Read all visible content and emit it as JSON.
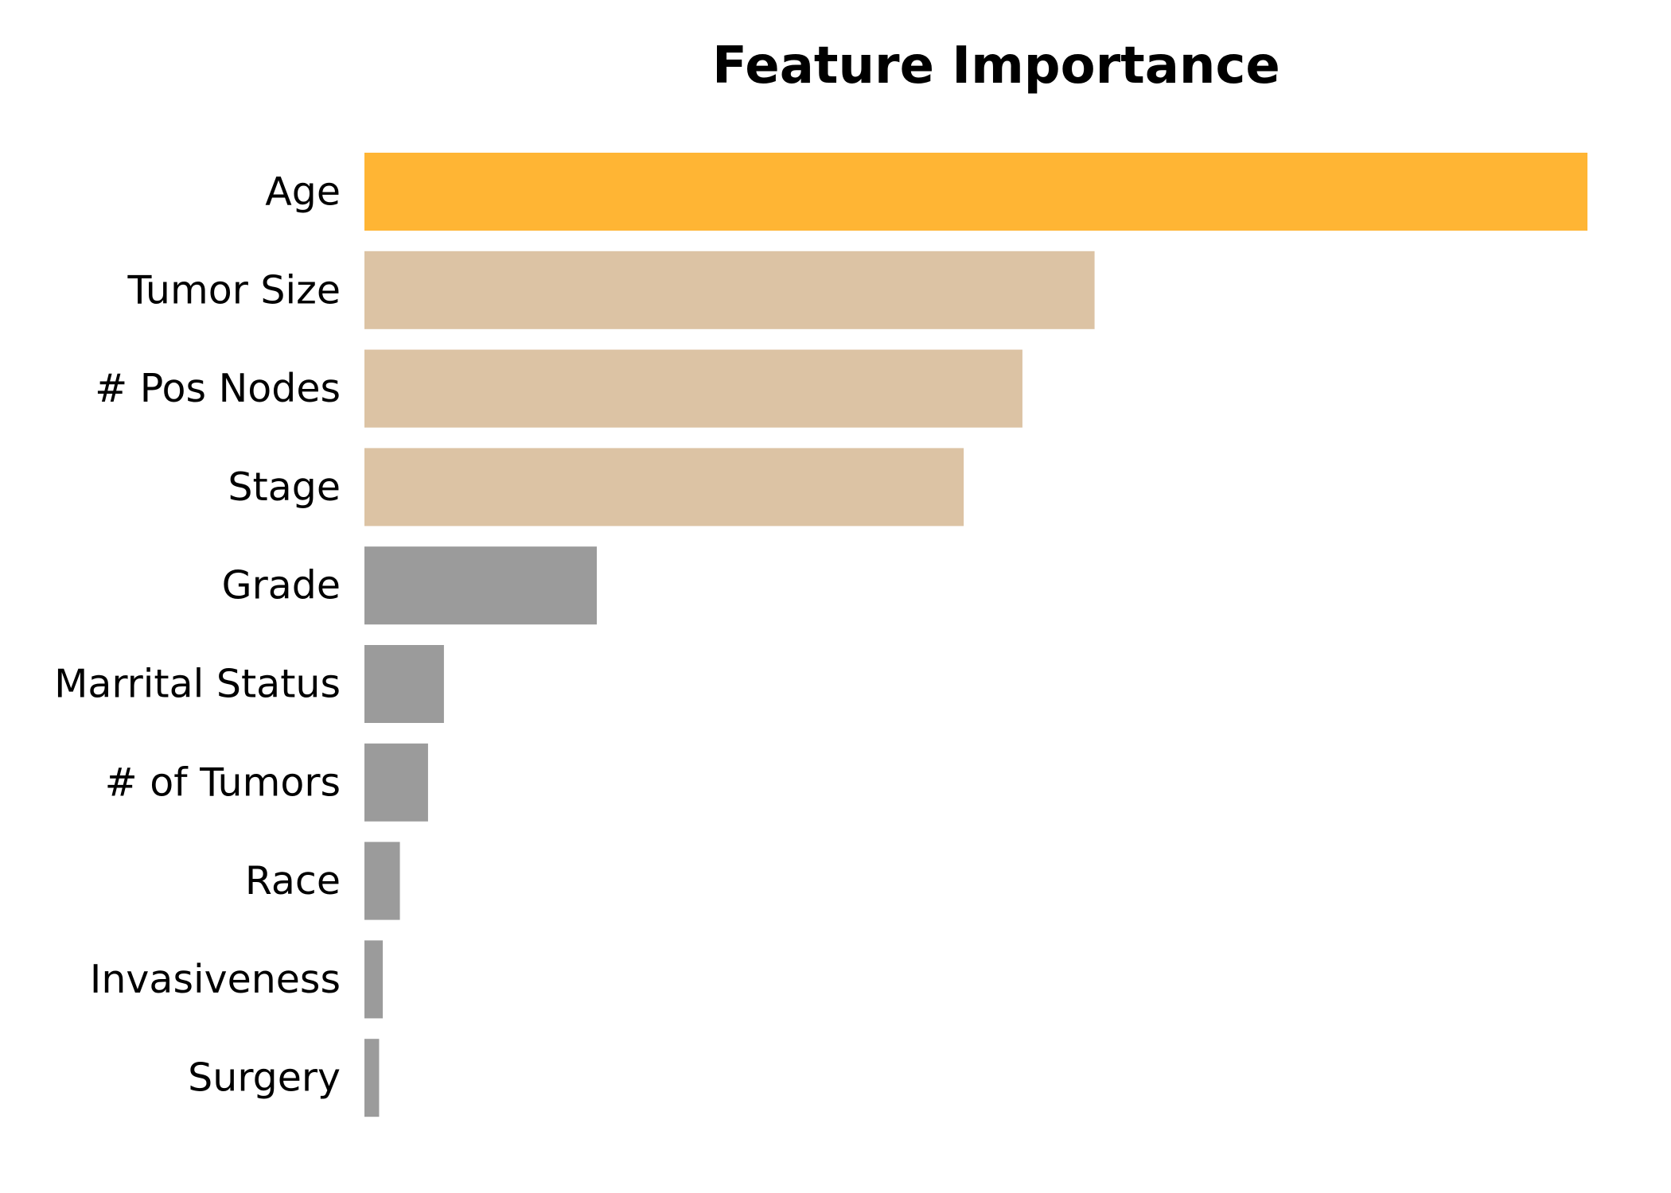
{
  "chart_data": {
    "type": "bar",
    "orientation": "horizontal",
    "title": "Feature Importance",
    "xlabel": "",
    "ylabel": "",
    "grid": false,
    "legend": "none",
    "categories": [
      "Age",
      "Tumor Size",
      "# Pos Nodes",
      "Stage",
      "Grade",
      "Marrital Status",
      "# of Tumors",
      "Race",
      "Invasiveness",
      "Surgery"
    ],
    "values": [
      1.0,
      0.597,
      0.538,
      0.49,
      0.19,
      0.065,
      0.052,
      0.029,
      0.015,
      0.012
    ],
    "xlim": [
      0,
      1.0
    ],
    "colors": [
      "#FFB534",
      "#DCC3A4",
      "#DCC3A4",
      "#DCC3A4",
      "#9B9B9B",
      "#9B9B9B",
      "#9B9B9B",
      "#9B9B9B",
      "#9B9B9B",
      "#9B9B9B"
    ]
  }
}
